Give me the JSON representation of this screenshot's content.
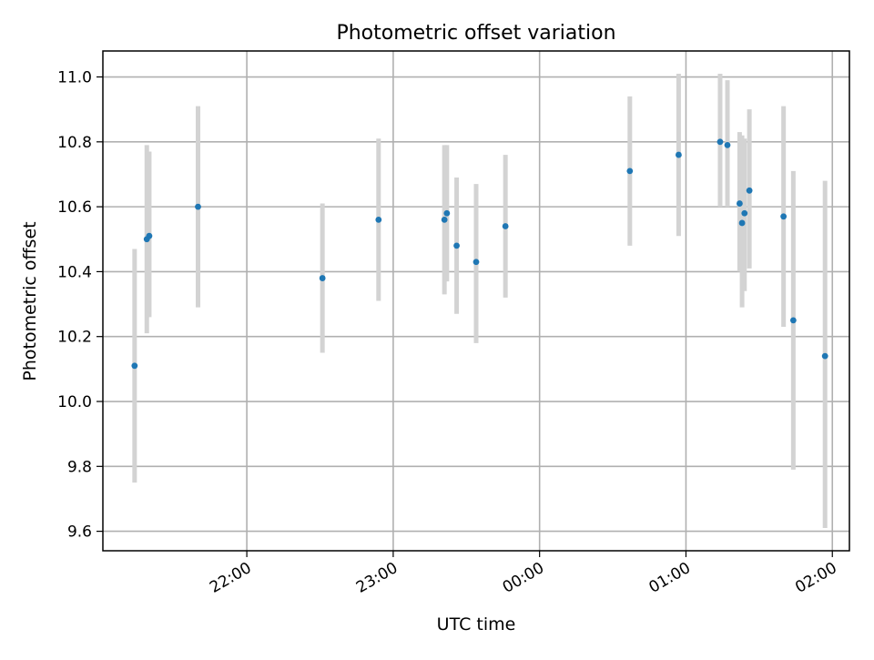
{
  "chart_data": {
    "type": "scatter",
    "title": "Photometric offset variation",
    "xlabel": "UTC time",
    "ylabel": "Photometric offset",
    "xlim": [
      "21:01",
      "02:07"
    ],
    "ylim": [
      9.54,
      11.08
    ],
    "grid": true,
    "x_ticks": [
      "22:00",
      "23:00",
      "00:00",
      "01:00",
      "02:00"
    ],
    "y_ticks": [
      "9.6",
      "9.8",
      "10.0",
      "10.2",
      "10.4",
      "10.6",
      "10.8",
      "11.0"
    ],
    "colors": {
      "point": "#1f77b4",
      "error_bar": "#d3d3d3"
    },
    "points": [
      {
        "x": "21:14",
        "y": 10.11,
        "yerr_low": 9.75,
        "yerr_high": 10.47
      },
      {
        "x": "21:19",
        "y": 10.5,
        "yerr_low": 10.21,
        "yerr_high": 10.79
      },
      {
        "x": "21:20",
        "y": 10.51,
        "yerr_low": 10.26,
        "yerr_high": 10.77
      },
      {
        "x": "21:40",
        "y": 10.6,
        "yerr_low": 10.29,
        "yerr_high": 10.91
      },
      {
        "x": "22:31",
        "y": 10.38,
        "yerr_low": 10.15,
        "yerr_high": 10.61
      },
      {
        "x": "22:54",
        "y": 10.56,
        "yerr_low": 10.31,
        "yerr_high": 10.81
      },
      {
        "x": "23:21",
        "y": 10.56,
        "yerr_low": 10.33,
        "yerr_high": 10.79
      },
      {
        "x": "23:22",
        "y": 10.58,
        "yerr_low": 10.37,
        "yerr_high": 10.79
      },
      {
        "x": "23:26",
        "y": 10.48,
        "yerr_low": 10.27,
        "yerr_high": 10.69
      },
      {
        "x": "23:34",
        "y": 10.43,
        "yerr_low": 10.18,
        "yerr_high": 10.67
      },
      {
        "x": "23:46",
        "y": 10.54,
        "yerr_low": 10.32,
        "yerr_high": 10.76
      },
      {
        "x": "00:37",
        "y": 10.71,
        "yerr_low": 10.48,
        "yerr_high": 10.94
      },
      {
        "x": "00:57",
        "y": 10.76,
        "yerr_low": 10.51,
        "yerr_high": 11.01
      },
      {
        "x": "01:14",
        "y": 10.8,
        "yerr_low": 10.6,
        "yerr_high": 11.01
      },
      {
        "x": "01:17",
        "y": 10.79,
        "yerr_low": 10.6,
        "yerr_high": 10.99
      },
      {
        "x": "01:22",
        "y": 10.61,
        "yerr_low": 10.4,
        "yerr_high": 10.83
      },
      {
        "x": "01:23",
        "y": 10.55,
        "yerr_low": 10.29,
        "yerr_high": 10.82
      },
      {
        "x": "01:24",
        "y": 10.58,
        "yerr_low": 10.34,
        "yerr_high": 10.81
      },
      {
        "x": "01:26",
        "y": 10.65,
        "yerr_low": 10.41,
        "yerr_high": 10.9
      },
      {
        "x": "01:40",
        "y": 10.57,
        "yerr_low": 10.23,
        "yerr_high": 10.91
      },
      {
        "x": "01:44",
        "y": 10.25,
        "yerr_low": 9.79,
        "yerr_high": 10.71
      },
      {
        "x": "01:57",
        "y": 10.14,
        "yerr_low": 9.61,
        "yerr_high": 10.68
      }
    ]
  }
}
